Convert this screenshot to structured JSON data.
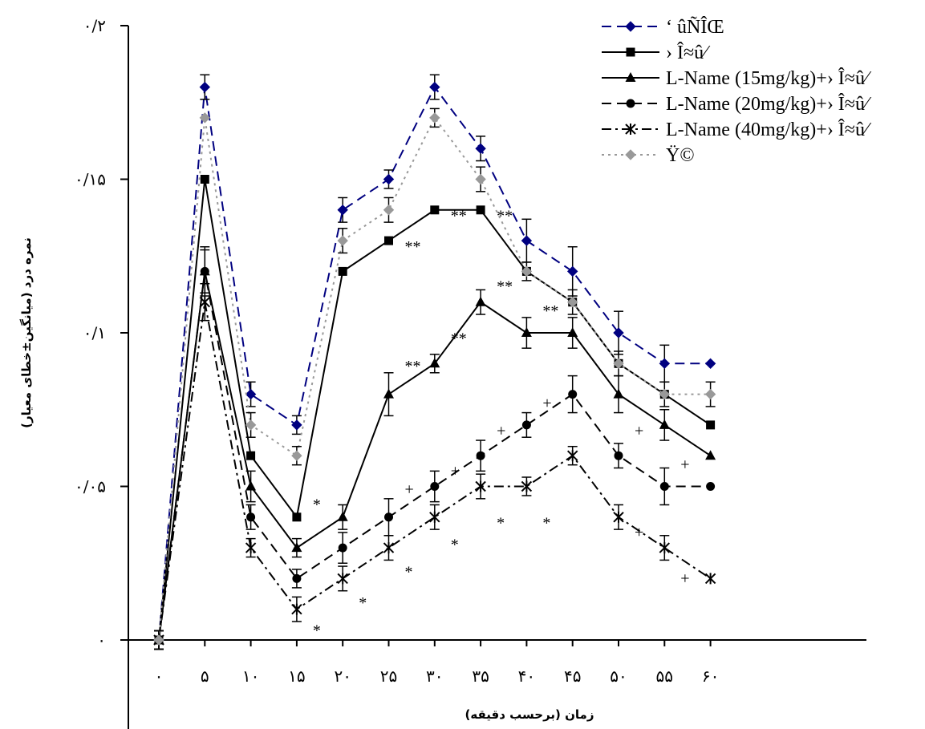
{
  "chart_data": {
    "type": "line",
    "title": "",
    "xlabel": "زمان (برحسب دقیقه)",
    "ylabel": "نمره درد (میانگین±خطای معیار)",
    "x": [
      0,
      5,
      10,
      15,
      20,
      25,
      30,
      35,
      40,
      45,
      50,
      55,
      60
    ],
    "x_tick_labels": [
      "۰",
      "۵",
      "۱۰",
      "۱۵",
      "۲۰",
      "۲۵",
      "۳۰",
      "۳۵",
      "۴۰",
      "۴۵",
      "۵۰",
      "۵۵",
      "۶۰"
    ],
    "ylim": [
      0,
      0.2
    ],
    "y_ticks": [
      0,
      0.05,
      0.1,
      0.15,
      0.2
    ],
    "y_tick_labels": [
      "۰",
      "۰/۰۵",
      "۰/۱",
      "۰/۱۵",
      "۰/۲"
    ],
    "legend_position": "top-right",
    "grid": false,
    "series": [
      {
        "name": "‘ ûÑÎŒ",
        "color": "#000080",
        "marker": "diamond",
        "line": "dashed",
        "values": [
          0,
          0.18,
          0.08,
          0.07,
          0.14,
          0.15,
          0.18,
          0.16,
          0.13,
          0.12,
          0.1,
          0.09,
          0.09
        ],
        "errors": [
          0.003,
          0.004,
          0.004,
          0.003,
          0.004,
          0.003,
          0.004,
          0.004,
          0.007,
          0.008,
          0.007,
          0.006,
          0
        ]
      },
      {
        "name": "› Î≈û⁄",
        "color": "#000000",
        "marker": "square",
        "line": "solid",
        "values": [
          0,
          0.15,
          0.06,
          0.04,
          0.12,
          0.13,
          0.14,
          0.14,
          0.12,
          0.11,
          0.09,
          0.08,
          0.07
        ],
        "errors": [
          0.003,
          0,
          0,
          0,
          0,
          0,
          0,
          0,
          0,
          0,
          0,
          0,
          0
        ]
      },
      {
        "name": "L-Name (15mg/kg)+› Î≈û⁄",
        "color": "#000000",
        "marker": "triangle",
        "line": "solid",
        "values": [
          0,
          0.12,
          0.05,
          0.03,
          0.04,
          0.08,
          0.09,
          0.11,
          0.1,
          0.1,
          0.08,
          0.07,
          0.06
        ],
        "errors": [
          0.003,
          0.007,
          0.005,
          0.003,
          0.004,
          0.007,
          0.003,
          0.004,
          0.005,
          0.005,
          0.006,
          0.005,
          0
        ]
      },
      {
        "name": "L-Name (20mg/kg)+› Î≈û⁄",
        "color": "#000000",
        "marker": "circle",
        "line": "dashed",
        "values": [
          0,
          0.12,
          0.04,
          0.02,
          0.03,
          0.04,
          0.05,
          0.06,
          0.07,
          0.08,
          0.06,
          0.05,
          0.05
        ],
        "errors": [
          0.003,
          0.008,
          0.004,
          0.003,
          0.005,
          0.006,
          0.005,
          0.005,
          0.004,
          0.006,
          0.004,
          0.006,
          0
        ]
      },
      {
        "name": "L-Name (40mg/kg)+› Î≈û⁄",
        "color": "#000000",
        "marker": "asterisk",
        "line": "dashdot",
        "values": [
          0,
          0.11,
          0.03,
          0.01,
          0.02,
          0.03,
          0.04,
          0.05,
          0.05,
          0.06,
          0.04,
          0.03,
          0.02
        ],
        "errors": [
          0.003,
          0.006,
          0.003,
          0.004,
          0.004,
          0.004,
          0.004,
          0.004,
          0.003,
          0.003,
          0.004,
          0.004,
          0
        ]
      },
      {
        "name": "Ÿ©",
        "color": "#999999",
        "marker": "diamond",
        "line": "dotted",
        "values": [
          0,
          0.17,
          0.07,
          0.06,
          0.13,
          0.14,
          0.17,
          0.15,
          0.12,
          0.11,
          0.09,
          0.08,
          0.08
        ],
        "errors": [
          0.003,
          0,
          0.004,
          0.003,
          0.004,
          0.004,
          0.003,
          0.004,
          0.003,
          0.004,
          0.004,
          0.004,
          0.004
        ]
      }
    ],
    "annotations": [
      {
        "text": "*",
        "x": 15,
        "y": 0.044
      },
      {
        "text": "**",
        "x": 25,
        "y": 0.128
      },
      {
        "text": "**",
        "x": 30,
        "y": 0.138
      },
      {
        "text": "**",
        "x": 35,
        "y": 0.138
      },
      {
        "text": "**",
        "x": 25,
        "y": 0.089
      },
      {
        "text": "**",
        "x": 30,
        "y": 0.098
      },
      {
        "text": "**",
        "x": 35,
        "y": 0.115
      },
      {
        "text": "**",
        "x": 40,
        "y": 0.107
      },
      {
        "text": "+",
        "x": 25,
        "y": 0.049
      },
      {
        "text": "+",
        "x": 30,
        "y": 0.055
      },
      {
        "text": "+",
        "x": 35,
        "y": 0.068
      },
      {
        "text": "+",
        "x": 40,
        "y": 0.077
      },
      {
        "text": "+",
        "x": 50,
        "y": 0.068
      },
      {
        "text": "+",
        "x": 55,
        "y": 0.057
      },
      {
        "text": "+",
        "x": 50,
        "y": 0.035
      },
      {
        "text": "+",
        "x": 55,
        "y": 0.02
      },
      {
        "text": "*",
        "x": 15,
        "y": 0.003
      },
      {
        "text": "*",
        "x": 20,
        "y": 0.012
      },
      {
        "text": "*",
        "x": 25,
        "y": 0.022
      },
      {
        "text": "*",
        "x": 30,
        "y": 0.031
      },
      {
        "text": "*",
        "x": 35,
        "y": 0.038
      },
      {
        "text": "*",
        "x": 40,
        "y": 0.038
      }
    ]
  }
}
